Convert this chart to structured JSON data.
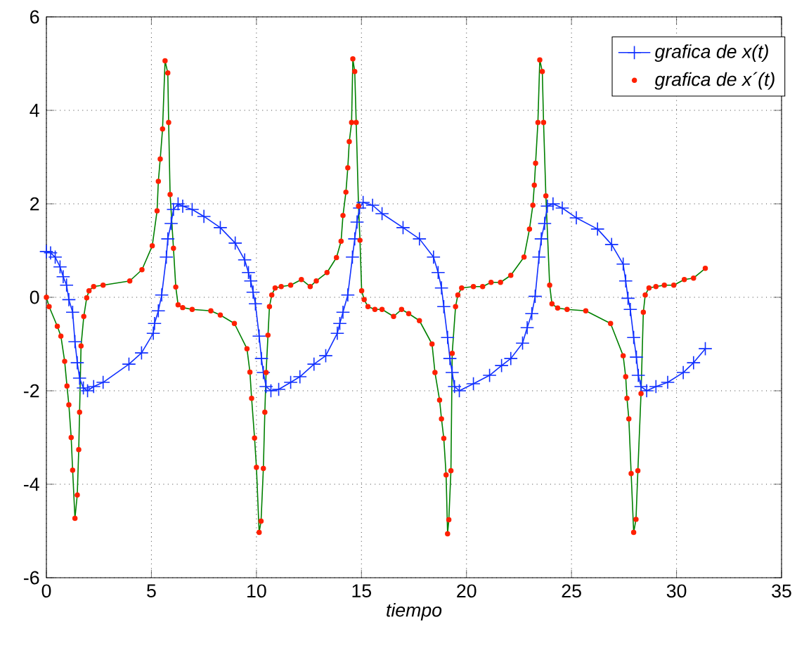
{
  "chart_data": {
    "type": "line",
    "xlabel": "tiempo",
    "xlim": [
      0,
      35
    ],
    "ylim": [
      -6,
      6
    ],
    "xticks": [
      0,
      5,
      10,
      15,
      20,
      25,
      30,
      35
    ],
    "yticks": [
      -6,
      -4,
      -2,
      0,
      2,
      4,
      6
    ],
    "grid": true,
    "legend": "top right",
    "series": [
      {
        "color": "#008000",
        "marker": "none",
        "line_style": "solid",
        "x": [
          0,
          0.13,
          0.52,
          0.69,
          0.87,
          0.98,
          1.07,
          1.18,
          1.25,
          1.36,
          1.47,
          1.54,
          1.58,
          1.65,
          1.78,
          1.92,
          2.03,
          2.25,
          2.7,
          3.97,
          4.55,
          5.04,
          5.27,
          5.33,
          5.42,
          5.53,
          5.65,
          5.78,
          5.82,
          5.89,
          6.05,
          6.16,
          6.27,
          6.49,
          6.94,
          7.83,
          8.28,
          8.95,
          9.55,
          9.69,
          9.77,
          9.91,
          10.0,
          10.13,
          10.22,
          10.33,
          10.4,
          10.46,
          10.55,
          10.62,
          10.73,
          10.89,
          11.18,
          11.63,
          12.14,
          12.56,
          12.85,
          13.36,
          13.81,
          14.03,
          14.12,
          14.26,
          14.35,
          14.42,
          14.53,
          14.59,
          14.68,
          14.75,
          14.86,
          14.93,
          15.01,
          15.13,
          15.31,
          15.64,
          15.98,
          16.53,
          16.91,
          17.25,
          17.76,
          18.36,
          18.5,
          18.72,
          18.81,
          18.92,
          19.03,
          19.1,
          19.16,
          19.26,
          19.32,
          19.48,
          19.59,
          19.77,
          20.33,
          20.77,
          21.17,
          21.62,
          22.11,
          22.74,
          23.0,
          23.16,
          23.23,
          23.29,
          23.4,
          23.49,
          23.61,
          23.67,
          23.78,
          23.96,
          24.07,
          24.34,
          24.79,
          25.68,
          26.86,
          27.46,
          27.58,
          27.64,
          27.73,
          27.84,
          27.96,
          28.07,
          28.16,
          28.31,
          28.42,
          28.51,
          28.69,
          29.02,
          29.42,
          29.87,
          30.37,
          30.81,
          31.37
        ],
        "values": [
          0,
          -0.2,
          -0.62,
          -0.83,
          -1.37,
          -1.9,
          -2.3,
          -3.0,
          -3.7,
          -4.73,
          -4.23,
          -3.26,
          -2.46,
          -1.04,
          -0.41,
          -0.01,
          0.14,
          0.23,
          0.26,
          0.35,
          0.59,
          1.1,
          1.85,
          2.48,
          2.96,
          3.6,
          5.06,
          4.8,
          3.74,
          2.2,
          1.05,
          0.22,
          -0.16,
          -0.22,
          -0.26,
          -0.29,
          -0.38,
          -0.56,
          -1.1,
          -1.6,
          -2.16,
          -3.01,
          -3.64,
          -5.03,
          -4.79,
          -3.66,
          -2.46,
          -1.61,
          -0.81,
          -0.2,
          0.05,
          0.2,
          0.23,
          0.26,
          0.38,
          0.23,
          0.35,
          0.53,
          0.85,
          1.2,
          1.75,
          2.25,
          2.77,
          3.33,
          3.74,
          5.1,
          4.83,
          3.74,
          1.95,
          1.22,
          0.14,
          -0.05,
          -0.2,
          -0.26,
          -0.26,
          -0.41,
          -0.26,
          -0.35,
          -0.5,
          -1.0,
          -1.61,
          -2.2,
          -2.6,
          -3.02,
          -3.8,
          -5.06,
          -4.76,
          -3.71,
          -1.2,
          -0.2,
          0.05,
          0.2,
          0.23,
          0.23,
          0.32,
          0.32,
          0.47,
          0.86,
          1.46,
          1.97,
          2.4,
          2.87,
          3.74,
          5.08,
          4.83,
          3.74,
          2.17,
          0.26,
          -0.14,
          -0.23,
          -0.26,
          -0.29,
          -0.56,
          -1.25,
          -1.7,
          -2.16,
          -2.6,
          -3.77,
          -5.03,
          -4.75,
          -3.71,
          -2.06,
          -0.32,
          0.05,
          0.2,
          0.23,
          0.26,
          0.26,
          0.38,
          0.41,
          0.62
        ]
      },
      {
        "name": "grafica de x(t)",
        "color": "#1030ff",
        "marker": "cross",
        "line_style": "solid",
        "x": [
          0,
          0.2,
          0.42,
          0.65,
          0.8,
          0.96,
          1.07,
          1.25,
          1.36,
          1.47,
          1.58,
          1.76,
          1.96,
          2.25,
          2.7,
          3.93,
          4.53,
          5.09,
          5.15,
          5.33,
          5.49,
          5.71,
          5.78,
          5.94,
          6.05,
          6.27,
          6.49,
          6.94,
          7.5,
          8.28,
          8.99,
          9.44,
          9.62,
          9.73,
          9.84,
          9.95,
          10.13,
          10.24,
          10.33,
          10.46,
          10.69,
          11.06,
          11.63,
          12.07,
          12.74,
          13.3,
          13.85,
          13.97,
          14.12,
          14.35,
          14.57,
          14.68,
          14.79,
          14.91,
          15.08,
          15.53,
          15.98,
          16.98,
          17.76,
          18.43,
          18.65,
          18.81,
          18.92,
          19.1,
          19.21,
          19.32,
          19.43,
          19.66,
          20.33,
          21.1,
          21.67,
          22.11,
          22.67,
          22.89,
          23.11,
          23.27,
          23.45,
          23.56,
          23.72,
          23.85,
          24.12,
          24.56,
          25.23,
          26.24,
          26.91,
          27.46,
          27.58,
          27.69,
          27.8,
          27.96,
          28.09,
          28.18,
          28.31,
          28.58,
          29.02,
          29.58,
          30.32,
          30.81,
          31.37
        ],
        "values": [
          0.98,
          0.95,
          0.86,
          0.65,
          0.44,
          0.26,
          -0.05,
          -0.32,
          -0.95,
          -1.4,
          -1.73,
          -1.94,
          -2.0,
          -1.91,
          -1.82,
          -1.43,
          -1.19,
          -0.77,
          -0.56,
          -0.29,
          0.05,
          0.86,
          1.25,
          1.58,
          1.88,
          2.0,
          1.95,
          1.88,
          1.73,
          1.49,
          1.16,
          0.8,
          0.53,
          0.35,
          0.11,
          -0.14,
          -0.83,
          -1.31,
          -1.61,
          -1.91,
          -2.0,
          -1.97,
          -1.82,
          -1.7,
          -1.43,
          -1.25,
          -0.77,
          -0.56,
          -0.32,
          0.05,
          0.86,
          1.25,
          1.61,
          1.91,
          2.03,
          1.97,
          1.79,
          1.49,
          1.25,
          0.86,
          0.53,
          0.2,
          -0.2,
          -0.86,
          -1.31,
          -1.61,
          -1.91,
          -2.0,
          -1.85,
          -1.67,
          -1.46,
          -1.31,
          -0.98,
          -0.65,
          -0.35,
          0.02,
          0.86,
          1.25,
          1.58,
          1.95,
          2.0,
          1.91,
          1.7,
          1.46,
          1.13,
          0.71,
          0.35,
          -0.02,
          -0.26,
          -0.86,
          -1.28,
          -1.67,
          -1.91,
          -2.0,
          -1.91,
          -1.82,
          -1.61,
          -1.4,
          -1.1
        ]
      },
      {
        "name": "grafica de x´(t)",
        "type": "scatter",
        "color": "#ff2000",
        "marker": "circle",
        "x": [
          0,
          0.13,
          0.52,
          0.69,
          0.87,
          0.98,
          1.07,
          1.18,
          1.25,
          1.36,
          1.47,
          1.54,
          1.58,
          1.65,
          1.78,
          1.92,
          2.03,
          2.25,
          2.7,
          3.97,
          4.55,
          5.04,
          5.27,
          5.33,
          5.42,
          5.53,
          5.65,
          5.78,
          5.82,
          5.89,
          6.05,
          6.16,
          6.27,
          6.49,
          6.94,
          7.83,
          8.28,
          8.95,
          9.55,
          9.69,
          9.77,
          9.91,
          10.0,
          10.13,
          10.22,
          10.33,
          10.4,
          10.46,
          10.55,
          10.62,
          10.73,
          10.89,
          11.18,
          11.63,
          12.14,
          12.56,
          12.85,
          13.36,
          13.81,
          14.03,
          14.12,
          14.26,
          14.35,
          14.42,
          14.53,
          14.59,
          14.68,
          14.75,
          14.86,
          14.93,
          15.01,
          15.13,
          15.31,
          15.64,
          15.98,
          16.53,
          16.91,
          17.25,
          17.76,
          18.36,
          18.5,
          18.72,
          18.81,
          18.92,
          19.03,
          19.1,
          19.16,
          19.26,
          19.32,
          19.48,
          19.59,
          19.77,
          20.33,
          20.77,
          21.17,
          21.62,
          22.11,
          22.74,
          23.0,
          23.16,
          23.23,
          23.29,
          23.4,
          23.49,
          23.61,
          23.67,
          23.78,
          23.96,
          24.07,
          24.34,
          24.79,
          25.68,
          26.86,
          27.46,
          27.58,
          27.64,
          27.73,
          27.84,
          27.96,
          28.07,
          28.16,
          28.31,
          28.42,
          28.51,
          28.69,
          29.02,
          29.42,
          29.87,
          30.37,
          30.81,
          31.37
        ],
        "values": [
          0,
          -0.2,
          -0.62,
          -0.83,
          -1.37,
          -1.9,
          -2.3,
          -3.0,
          -3.7,
          -4.73,
          -4.23,
          -3.26,
          -2.46,
          -1.04,
          -0.41,
          -0.01,
          0.14,
          0.23,
          0.26,
          0.35,
          0.59,
          1.1,
          1.85,
          2.48,
          2.96,
          3.6,
          5.06,
          4.8,
          3.74,
          2.2,
          1.05,
          0.22,
          -0.16,
          -0.22,
          -0.26,
          -0.29,
          -0.38,
          -0.56,
          -1.1,
          -1.6,
          -2.16,
          -3.01,
          -3.64,
          -5.03,
          -4.79,
          -3.66,
          -2.46,
          -1.61,
          -0.81,
          -0.2,
          0.05,
          0.2,
          0.23,
          0.26,
          0.38,
          0.23,
          0.35,
          0.53,
          0.85,
          1.2,
          1.75,
          2.25,
          2.77,
          3.33,
          3.74,
          5.1,
          4.83,
          3.74,
          1.95,
          1.22,
          0.14,
          -0.05,
          -0.2,
          -0.26,
          -0.26,
          -0.41,
          -0.26,
          -0.35,
          -0.5,
          -1.0,
          -1.61,
          -2.2,
          -2.6,
          -3.02,
          -3.8,
          -5.06,
          -4.76,
          -3.71,
          -1.2,
          -0.2,
          0.05,
          0.2,
          0.23,
          0.23,
          0.32,
          0.32,
          0.47,
          0.86,
          1.46,
          1.97,
          2.4,
          2.87,
          3.74,
          5.08,
          4.83,
          3.74,
          2.17,
          0.26,
          -0.14,
          -0.23,
          -0.26,
          -0.29,
          -0.56,
          -1.25,
          -1.7,
          -2.16,
          -2.6,
          -3.77,
          -5.03,
          -4.75,
          -3.71,
          -2.06,
          -0.32,
          0.05,
          0.2,
          0.23,
          0.26,
          0.26,
          0.38,
          0.41,
          0.62
        ]
      }
    ]
  }
}
